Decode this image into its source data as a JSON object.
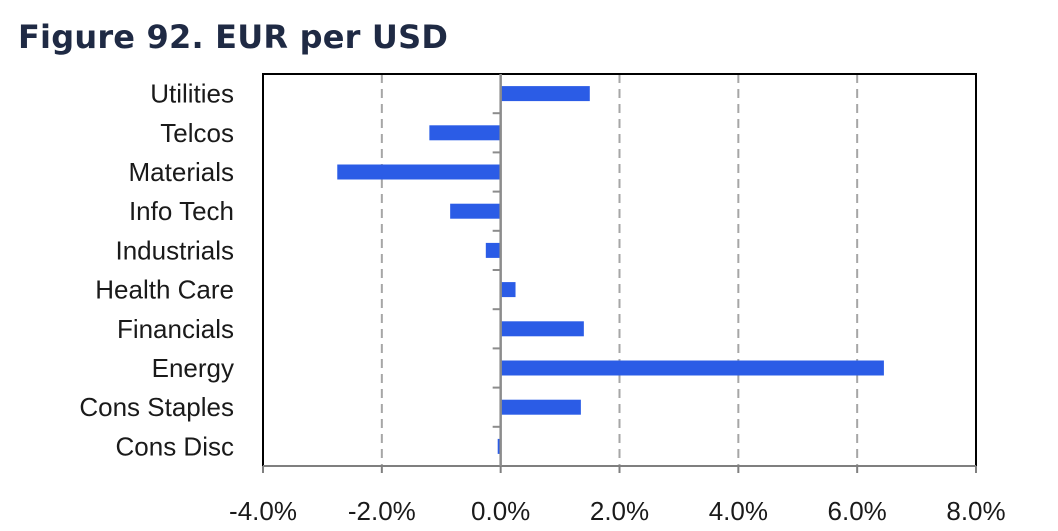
{
  "title": "Figure 92. EUR per USD",
  "chart_data": {
    "type": "bar",
    "orientation": "horizontal",
    "categories": [
      "Utilities",
      "Telcos",
      "Materials",
      "Info Tech",
      "Industrials",
      "Health Care",
      "Financials",
      "Energy",
      "Cons Staples",
      "Cons Disc"
    ],
    "values": [
      1.5,
      -1.2,
      -2.75,
      -0.85,
      -0.25,
      0.25,
      1.4,
      6.45,
      1.35,
      -0.05
    ],
    "x_ticks": [
      "-4.0%",
      "-2.0%",
      "0.0%",
      "2.0%",
      "4.0%",
      "6.0%",
      "8.0%"
    ],
    "xlim": [
      -4,
      8
    ],
    "grid": "vertical dashed",
    "bar_color": "#2b5ce6"
  }
}
